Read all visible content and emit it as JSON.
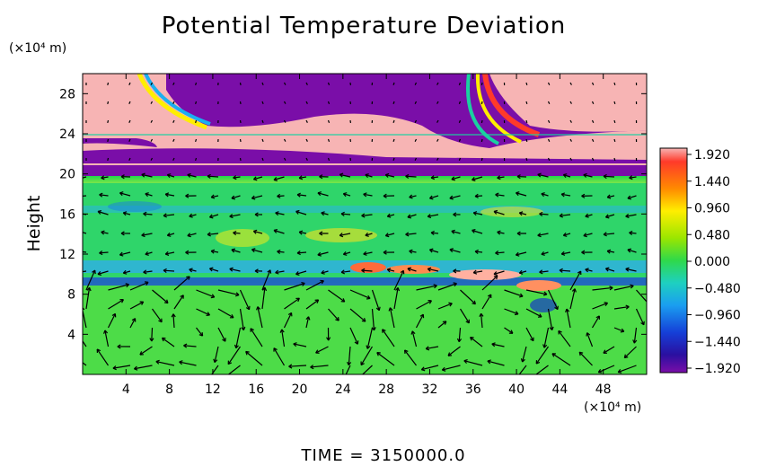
{
  "chart_data": {
    "type": "heatmap",
    "title": "Potential Temperature Deviation",
    "ylabel": "Height",
    "x_unit": "(×10⁴ m)",
    "y_unit": "(×10⁴ m)",
    "xlim": [
      0,
      52
    ],
    "ylim": [
      0,
      30
    ],
    "x_ticks": [
      "4",
      "8",
      "12",
      "16",
      "20",
      "24",
      "28",
      "32",
      "36",
      "40",
      "44",
      "48"
    ],
    "y_ticks": [
      "4",
      "8",
      "12",
      "16",
      "20",
      "24",
      "28"
    ],
    "x_tick_values": [
      4,
      8,
      12,
      16,
      20,
      24,
      28,
      32,
      36,
      40,
      44,
      48
    ],
    "y_tick_values": [
      4,
      8,
      12,
      16,
      20,
      24,
      28
    ],
    "colorbar": {
      "labels": [
        "1.920",
        "1.440",
        "0.960",
        "0.480",
        "0.000",
        "−0.480",
        "−0.960",
        "−1.440",
        "−1.920"
      ],
      "values": [
        1.92,
        1.44,
        0.96,
        0.48,
        0.0,
        -0.48,
        -0.96,
        -1.44,
        -1.92
      ],
      "range": [
        -1.92,
        1.92
      ]
    },
    "overlay": "velocity vector arrows",
    "grid": false
  },
  "footer": {
    "time_label": "TIME  =  3150000.0"
  }
}
